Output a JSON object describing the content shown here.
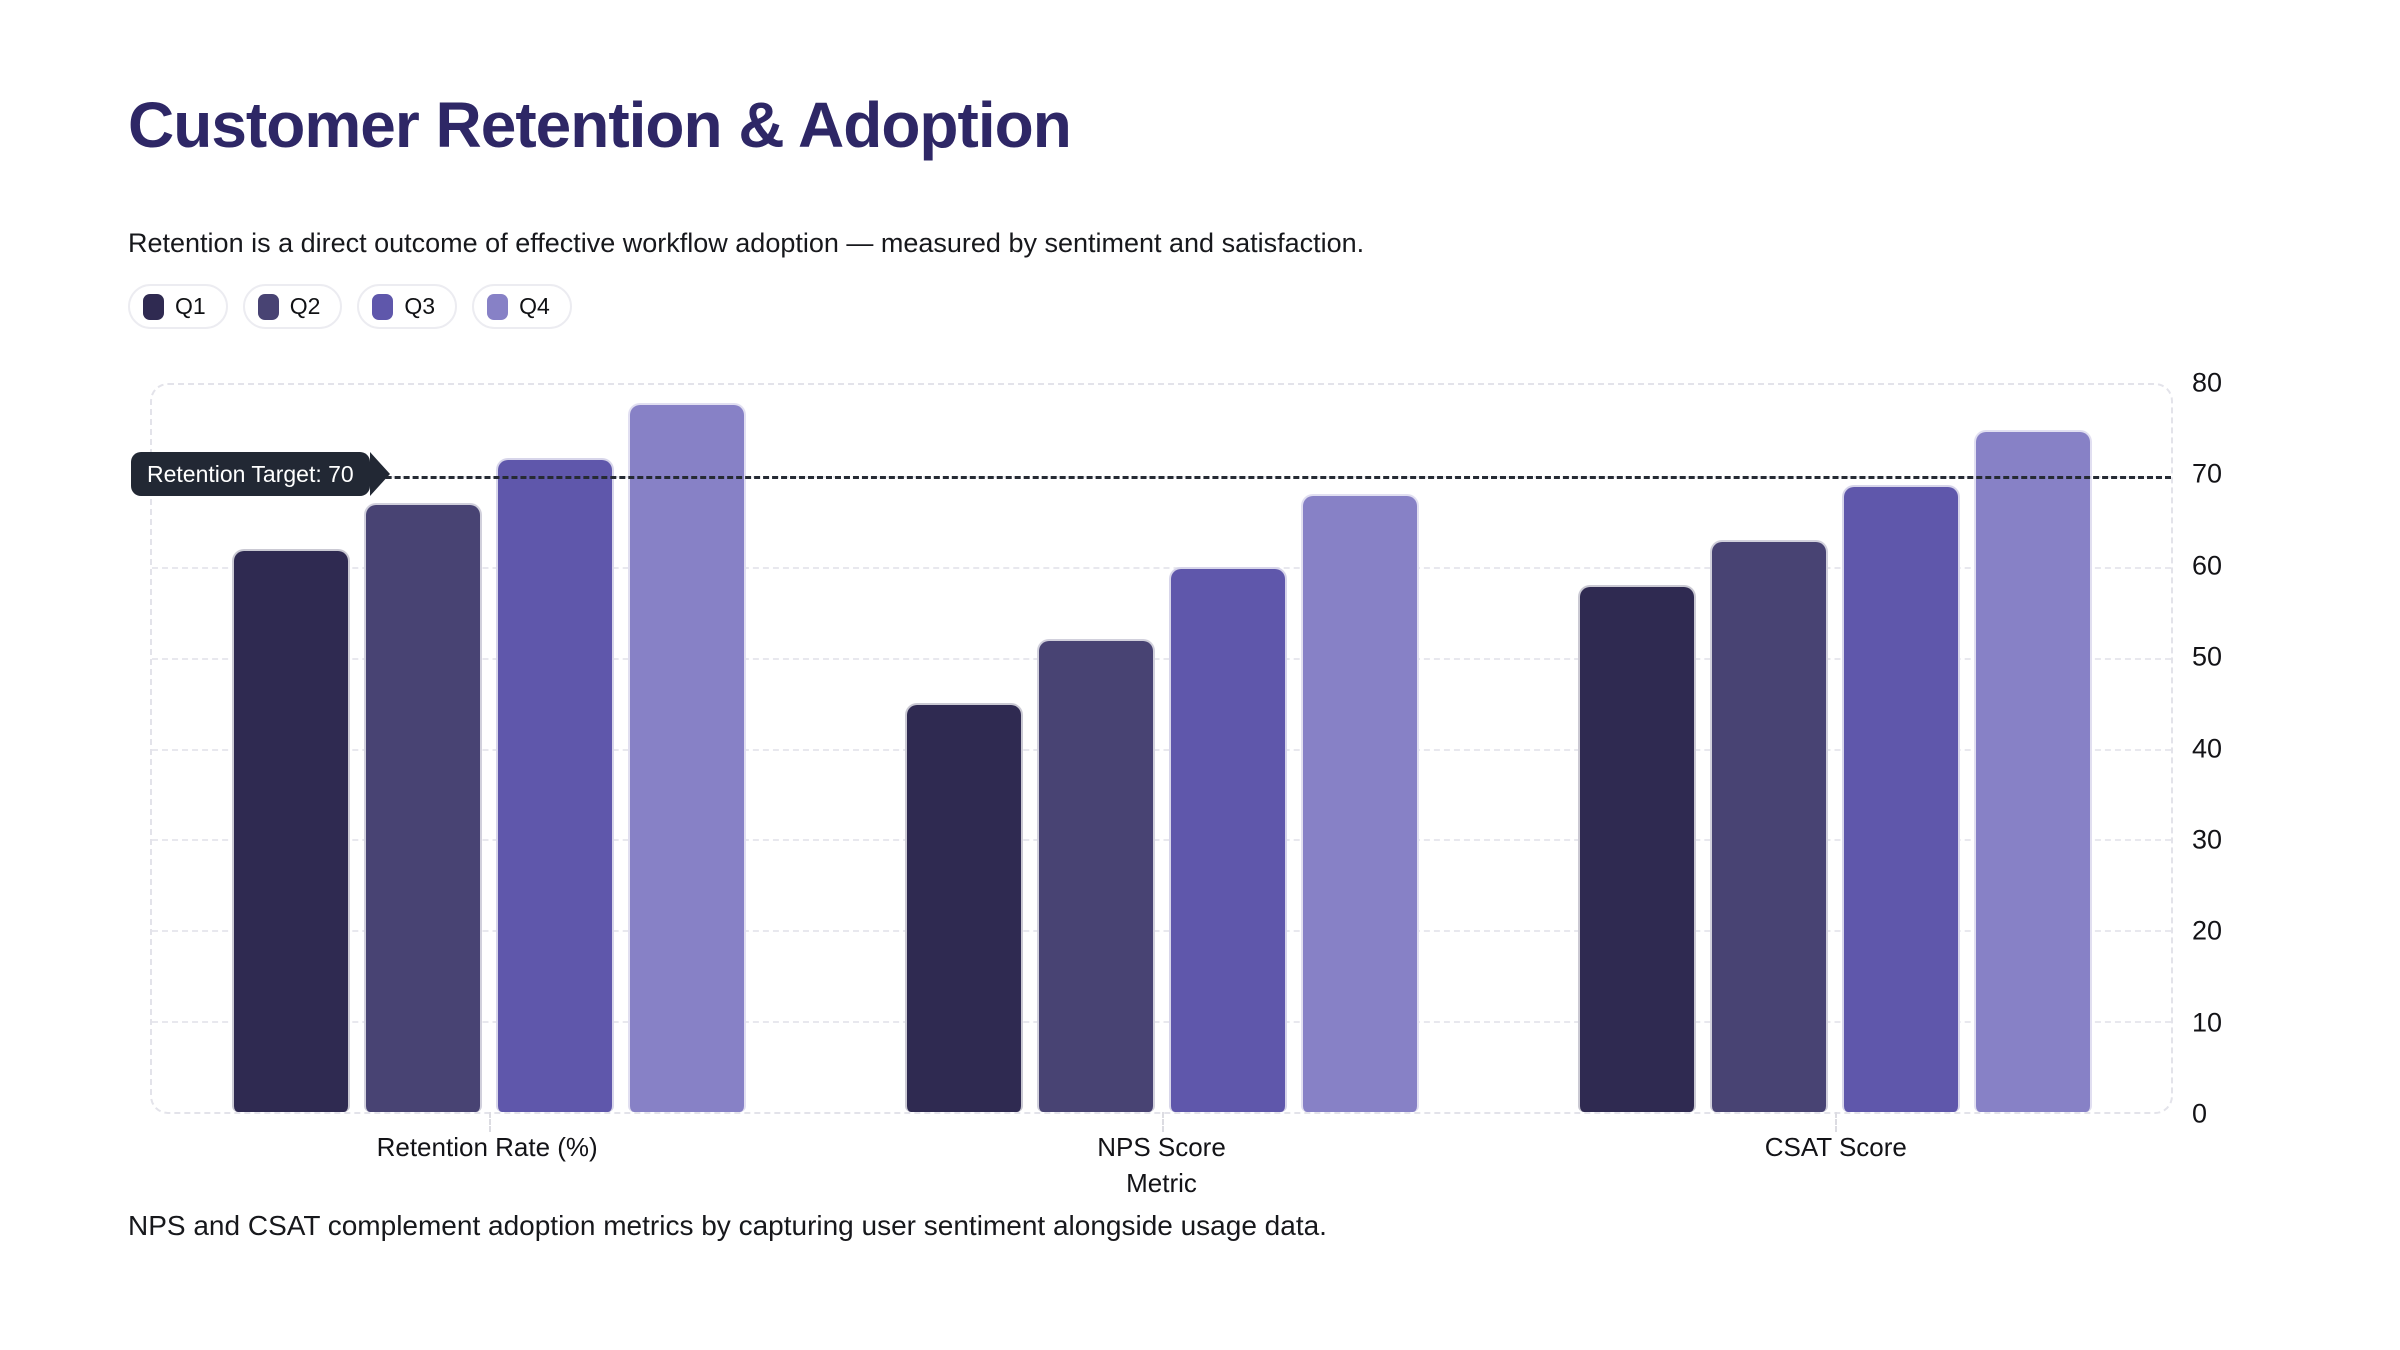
{
  "page": {
    "title": "Customer Retention & Adoption",
    "subtitle": "Retention is a direct outcome of effective workflow adoption — measured by sentiment and satisfaction.",
    "caption": "NPS and CSAT complement adoption metrics by capturing user sentiment alongside usage data."
  },
  "colors": {
    "title_text": "#2e2766",
    "q1": "#2f2a51",
    "q2": "#484373",
    "q3": "#5f57ab",
    "q4": "#8781c6",
    "target_line": "#262b34",
    "gridline": "#e8e8ee"
  },
  "chart_data": {
    "type": "bar",
    "title": "",
    "categories": [
      "Retention Rate (%)",
      "NPS Score",
      "CSAT Score"
    ],
    "series": [
      {
        "name": "Q1",
        "color": "#2f2a51",
        "values": [
          62,
          45,
          58
        ]
      },
      {
        "name": "Q2",
        "color": "#484373",
        "values": [
          67,
          52,
          63
        ]
      },
      {
        "name": "Q3",
        "color": "#5f57ab",
        "values": [
          72,
          60,
          69
        ]
      },
      {
        "name": "Q4",
        "color": "#8781c6",
        "values": [
          78,
          68,
          75
        ]
      }
    ],
    "xlabel": "Metric",
    "ylabel": "",
    "ylim": [
      0,
      80
    ],
    "yticks": [
      0,
      10,
      20,
      30,
      40,
      50,
      60,
      70,
      80
    ],
    "grid": true,
    "legend_position": "top",
    "target_line": {
      "value": 70,
      "label": "Retention Target: 70"
    }
  }
}
